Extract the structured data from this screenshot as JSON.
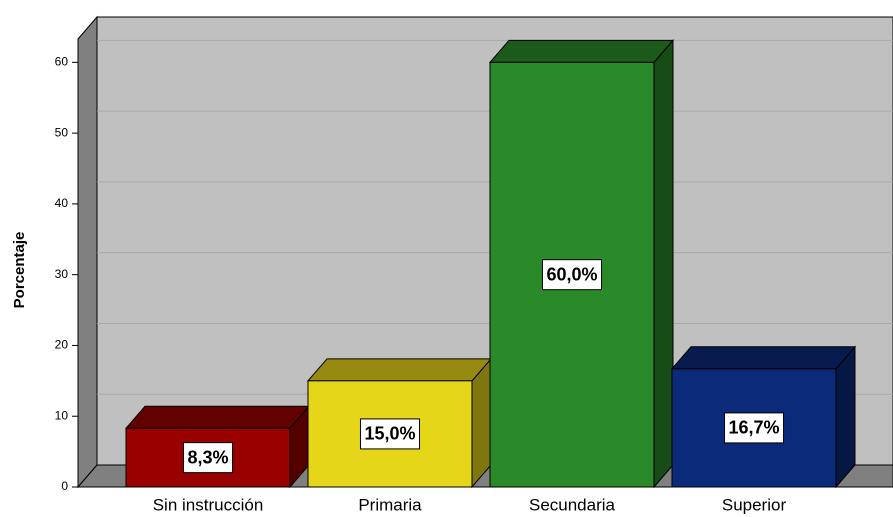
{
  "chart_data": {
    "type": "bar3d",
    "y_label": "Porcentaje",
    "categories": [
      "Sin instrucción",
      "Primaria",
      "Secundaria",
      "Superior"
    ],
    "values": [
      8.3,
      15.0,
      60.0,
      16.7
    ],
    "value_labels": [
      "8,3%",
      "15,0%",
      "60,0%",
      "16,7%"
    ],
    "colors": [
      "#990000",
      "#e6d619",
      "#2a8a2a",
      "#0c2a7a"
    ],
    "ylim": [
      0,
      63.3
    ],
    "yticks": [
      0,
      10,
      20,
      30,
      40,
      50,
      60
    ],
    "grid": true
  }
}
